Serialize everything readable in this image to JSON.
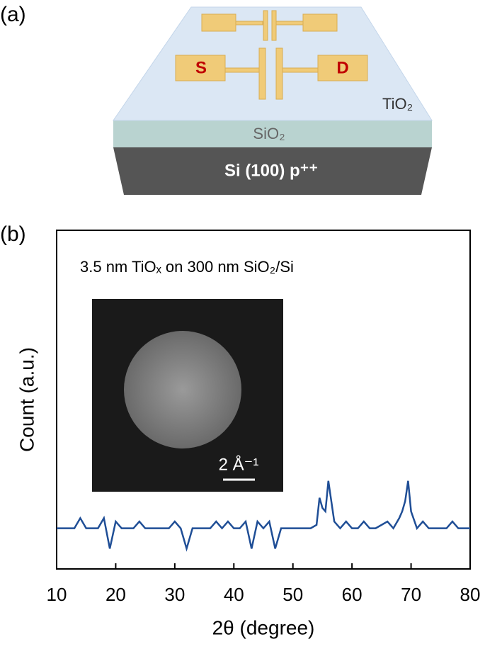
{
  "figure": {
    "panel_a": {
      "label": "(a)",
      "source": "S",
      "drain": "D",
      "layer_top": "TiO₂",
      "layer_middle": "SiO₂",
      "layer_bottom": "Si (100) p⁺⁺"
    }
  },
  "chart_data": {
    "type": "line",
    "panel_label": "(b)",
    "annotation": "3.5 nm TiOₓ on 300 nm SiO₂/Si",
    "inset_scale": "2 Å⁻¹",
    "xlabel": "2θ (degree)",
    "ylabel": "Count (a.u.)",
    "xlim": [
      10,
      80
    ],
    "xticks": [
      10,
      20,
      30,
      40,
      50,
      60,
      70,
      80
    ],
    "ylim": [
      0,
      100
    ],
    "x": [
      10,
      11,
      12,
      13,
      14,
      15,
      16,
      17,
      18,
      19,
      20,
      21,
      22,
      23,
      24,
      25,
      26,
      27,
      28,
      29,
      30,
      31,
      32,
      33,
      34,
      35,
      36,
      37,
      38,
      39,
      40,
      41,
      42,
      43,
      44,
      45,
      46,
      47,
      48,
      49,
      50,
      51,
      52,
      53,
      54,
      54.5,
      55,
      55.5,
      56,
      56.5,
      57,
      58,
      59,
      60,
      61,
      62,
      63,
      64,
      65,
      66,
      67,
      68,
      68.5,
      69,
      69.5,
      70,
      71,
      72,
      73,
      74,
      75,
      76,
      77,
      78,
      79,
      80
    ],
    "series": [
      {
        "color": "#1f4e96",
        "values": [
          12,
          12,
          12,
          12,
          15,
          12,
          12,
          12,
          15,
          6,
          14,
          12,
          12,
          12,
          14,
          12,
          12,
          12,
          12,
          12,
          14,
          12,
          6,
          12,
          12,
          12,
          12,
          14,
          12,
          14,
          12,
          12,
          14,
          6,
          14,
          12,
          14,
          6,
          12,
          12,
          12,
          12,
          12,
          12,
          13,
          21,
          18,
          17,
          26,
          20,
          14,
          12,
          14,
          12,
          12,
          14,
          12,
          12,
          13,
          14,
          12,
          15,
          17,
          20,
          26,
          17,
          12,
          14,
          12,
          12,
          12,
          12,
          14,
          12,
          12,
          12
        ]
      }
    ]
  }
}
